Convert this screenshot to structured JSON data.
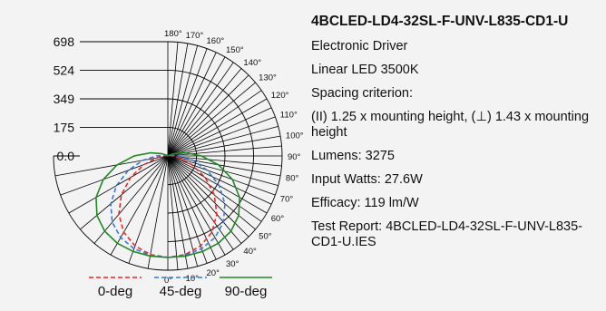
{
  "product": {
    "title": "4BCLED-LD4-32SL-F-UNV-L835-CD1-U",
    "driver": "Electronic Driver",
    "source": "Linear LED 3500K",
    "spacing_label": "Spacing criterion:",
    "spacing_value": "(II) 1.25 x mounting height, (⊥) 1.43 x mounting height",
    "lumens": "Lumens: 3275",
    "input_watts": "Input Watts: 27.6W",
    "efficacy": "Efficacy: 119 lm/W",
    "test_report": "Test Report: 4BCLED-LD4-32SL-F-UNV-L835-CD1-U.IES"
  },
  "chart_data": {
    "type": "polar",
    "title": "",
    "radial_ticks": [
      "698",
      "524",
      "349",
      "175",
      "0.0"
    ],
    "radial_tick_values": [
      698,
      524,
      349,
      175,
      0
    ],
    "rmax": 698,
    "angle_labels": [
      "0°",
      "10°",
      "20°",
      "30°",
      "40°",
      "50°",
      "60°",
      "70°",
      "80°",
      "90°",
      "100°",
      "110°",
      "120°",
      "130°",
      "140°",
      "150°",
      "160°",
      "170°",
      "180°"
    ],
    "angles_deg": [
      0,
      10,
      20,
      30,
      40,
      50,
      60,
      70,
      80,
      90,
      100,
      110,
      120,
      130,
      140,
      150,
      160,
      170,
      180
    ],
    "legend_placement": "bottom",
    "series": [
      {
        "name": "0-deg",
        "color": "#e8282a",
        "dash": "dashed",
        "candela": [
          620,
          612,
          585,
          538,
          465,
          370,
          262,
          155,
          70,
          35,
          15,
          5,
          0,
          0,
          0,
          0,
          0,
          0,
          0
        ]
      },
      {
        "name": "45-deg",
        "color": "#3a78d8",
        "dash": "dashed",
        "candela": [
          620,
          616,
          603,
          576,
          528,
          455,
          362,
          257,
          155,
          72,
          25,
          8,
          0,
          0,
          0,
          0,
          0,
          0,
          0
        ]
      },
      {
        "name": "90-deg",
        "color": "#1e8a24",
        "dash": "solid",
        "candela": [
          620,
          621,
          621,
          616,
          600,
          565,
          506,
          420,
          315,
          206,
          108,
          42,
          10,
          0,
          0,
          0,
          0,
          0,
          0
        ]
      }
    ]
  }
}
